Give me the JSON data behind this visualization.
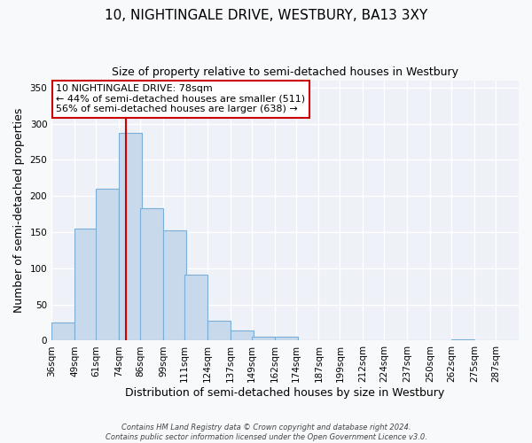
{
  "title": "10, NIGHTINGALE DRIVE, WESTBURY, BA13 3XY",
  "subtitle": "Size of property relative to semi-detached houses in Westbury",
  "xlabel": "Distribution of semi-detached houses by size in Westbury",
  "ylabel": "Number of semi-detached properties",
  "bin_labels": [
    "36sqm",
    "49sqm",
    "61sqm",
    "74sqm",
    "86sqm",
    "99sqm",
    "111sqm",
    "124sqm",
    "137sqm",
    "149sqm",
    "162sqm",
    "174sqm",
    "187sqm",
    "199sqm",
    "212sqm",
    "224sqm",
    "237sqm",
    "250sqm",
    "262sqm",
    "275sqm",
    "287sqm"
  ],
  "bar_heights": [
    25,
    155,
    210,
    287,
    183,
    152,
    91,
    28,
    14,
    5,
    5,
    0,
    1,
    0,
    1,
    0,
    0,
    0,
    2,
    0,
    0
  ],
  "bar_color": "#c9d9ec",
  "bar_edge_color": "#7aaed6",
  "vline_x_bin_index": 3,
  "vline_color": "#cc0000",
  "ylim": [
    0,
    360
  ],
  "yticks": [
    0,
    50,
    100,
    150,
    200,
    250,
    300,
    350
  ],
  "annotation_line1": "10 NIGHTINGALE DRIVE: 78sqm",
  "annotation_line2": "← 44% of semi-detached houses are smaller (511)",
  "annotation_line3": "56% of semi-detached houses are larger (638) →",
  "annotation_box_facecolor": "#ffffff",
  "annotation_box_edgecolor": "#cc0000",
  "footer1": "Contains HM Land Registry data © Crown copyright and database right 2024.",
  "footer2": "Contains public sector information licensed under the Open Government Licence v3.0.",
  "fig_facecolor": "#f8f9fb",
  "axes_facecolor": "#eef1f7",
  "grid_color": "#ffffff",
  "title_fontsize": 11,
  "subtitle_fontsize": 9,
  "axis_label_fontsize": 9,
  "tick_fontsize": 7.5,
  "annotation_fontsize": 8,
  "footer_fontsize": 6
}
